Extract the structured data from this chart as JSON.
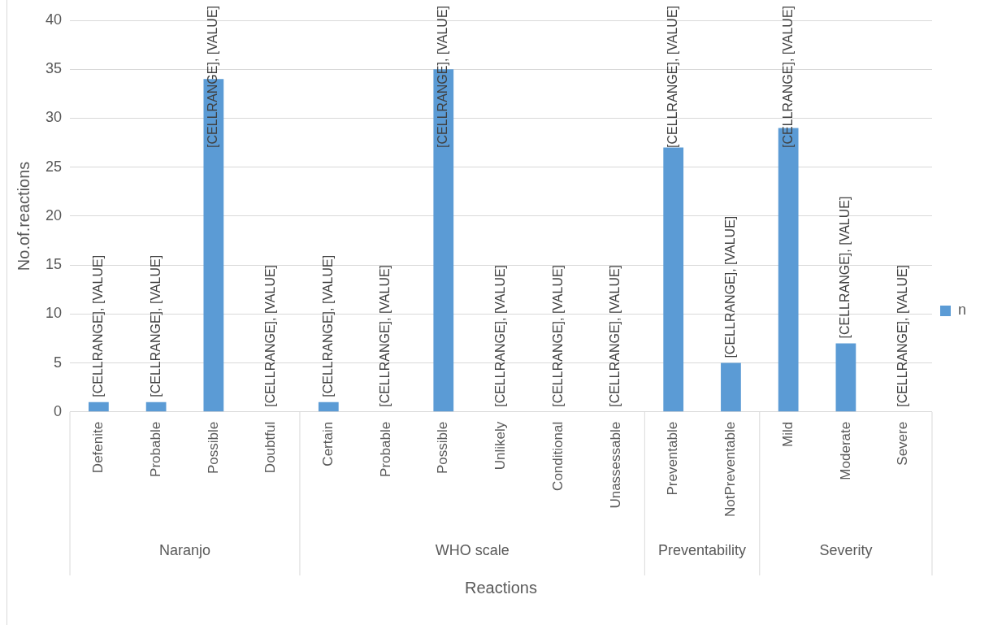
{
  "chart_data": {
    "type": "bar",
    "categories": [
      "Defenite",
      "Probable",
      "Possible",
      "Doubtful",
      "Certain",
      "Probable",
      "Possible",
      "Unlikely",
      "Conditional",
      "Unassessable",
      "Preventable",
      "NotPreventable",
      "Mild",
      "Moderate",
      "Severe"
    ],
    "series": [
      {
        "name": "n",
        "color": "#5b9bd5",
        "values": [
          1,
          1,
          34,
          0,
          1,
          0,
          35,
          0,
          0,
          0,
          27,
          5,
          29,
          7,
          0
        ],
        "value_labels": [
          "[CELLRANGE], [VALUE]",
          "[CELLRANGE], [VALUE]",
          "[CELLRANGE], [VALUE]",
          "[CELLRANGE], [VALUE]",
          "[CELLRANGE], [VALUE]",
          "[CELLRANGE], [VALUE]",
          "[CELLRANGE], [VALUE]",
          "[CELLRANGE], [VALUE]",
          "[CELLRANGE], [VALUE]",
          "[CELLRANGE], [VALUE]",
          "[CELLRANGE], [VALUE]",
          "[CELLRANGE], [VALUE]",
          "[CELLRANGE], [VALUE]",
          "[CELLRANGE], [VALUE]",
          "[CELLRANGE], [VALUE]"
        ]
      }
    ],
    "annotations": [
      "Naranjo",
      "WHO scale",
      "Preventability",
      "Severity"
    ],
    "xlabel": "Reactions",
    "ylabel": "No.of.reactions",
    "ylim": [
      0,
      40
    ],
    "yticks": [
      0,
      5,
      10,
      15,
      20,
      25,
      30,
      35,
      40
    ],
    "grid": "y",
    "legend": "right"
  }
}
